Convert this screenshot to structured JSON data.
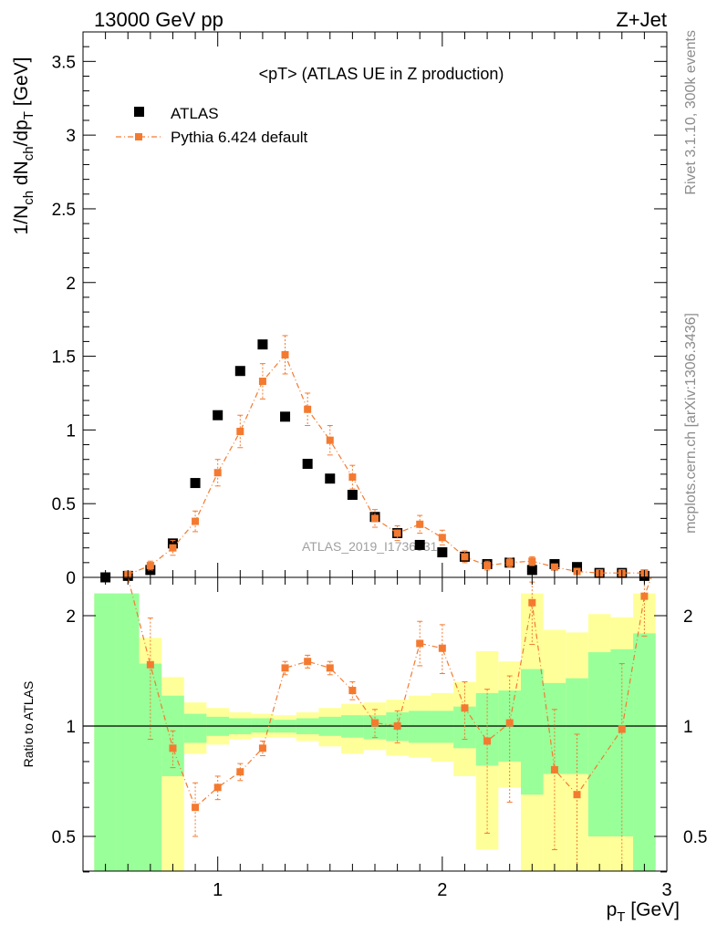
{
  "header": {
    "left": "13000 GeV pp",
    "right": "Z+Jet"
  },
  "side_text": {
    "top": "Rivet 3.1.10,  300k events",
    "bottom": "mcplots.cern.ch [arXiv:1306.3436]"
  },
  "watermark": "ATLAS_2019_I1736531",
  "colors": {
    "data": "#000000",
    "mc": "#f47a30",
    "band_inner": "#99ff99",
    "band_outer": "#ffff99",
    "unity_line": "#000000"
  },
  "chart_data": [
    {
      "type": "scatter",
      "title": "<pT> (ATLAS UE in Z production)",
      "xlabel": "p_T [GeV]",
      "ylabel": "1/N_ch dN_ch/dp_T [GeV]",
      "xlim": [
        0.4,
        3.0
      ],
      "ylim": [
        0,
        3.7
      ],
      "x_ticks": [],
      "y_ticks": [
        "0",
        "0.5",
        "1",
        "1.5",
        "2",
        "2.5",
        "3",
        "3.5"
      ],
      "legend": {
        "position": "top-left",
        "entries": [
          "ATLAS",
          "Pythia 6.424 default"
        ]
      },
      "series": [
        {
          "name": "ATLAS",
          "marker": "square",
          "x": [
            0.5,
            0.6,
            0.7,
            0.8,
            0.9,
            1.0,
            1.1,
            1.2,
            1.3,
            1.4,
            1.5,
            1.6,
            1.7,
            1.8,
            1.9,
            2.0,
            2.1,
            2.2,
            2.3,
            2.4,
            2.5,
            2.6,
            2.7,
            2.8,
            2.9
          ],
          "y": [
            0.0,
            0.01,
            0.05,
            0.23,
            0.64,
            1.1,
            1.4,
            1.58,
            1.09,
            0.77,
            0.67,
            0.56,
            0.41,
            0.3,
            0.22,
            0.17,
            0.14,
            0.09,
            0.1,
            0.05,
            0.09,
            0.07,
            0.03,
            0.03,
            0.01
          ]
        },
        {
          "name": "Pythia 6.424 default",
          "marker": "square-errorbar",
          "x": [
            0.6,
            0.7,
            0.8,
            0.9,
            1.0,
            1.1,
            1.2,
            1.3,
            1.4,
            1.5,
            1.6,
            1.7,
            1.8,
            1.9,
            2.0,
            2.1,
            2.2,
            2.3,
            2.4,
            2.5,
            2.6,
            2.7,
            2.8,
            2.9
          ],
          "y": [
            0.02,
            0.08,
            0.2,
            0.38,
            0.71,
            0.99,
            1.33,
            1.51,
            1.14,
            0.93,
            0.68,
            0.4,
            0.3,
            0.36,
            0.27,
            0.14,
            0.08,
            0.1,
            0.11,
            0.07,
            0.04,
            0.03,
            0.03,
            0.03
          ],
          "err": [
            0.01,
            0.03,
            0.05,
            0.07,
            0.09,
            0.11,
            0.12,
            0.13,
            0.11,
            0.1,
            0.08,
            0.06,
            0.05,
            0.06,
            0.05,
            0.04,
            0.03,
            0.03,
            0.03,
            0.02,
            0.02,
            0.02,
            0.02,
            0.02
          ]
        }
      ]
    },
    {
      "type": "scatter",
      "title": "",
      "xlabel": "p_T [GeV]",
      "ylabel": "Ratio to ATLAS",
      "xlim": [
        0.4,
        3.0
      ],
      "ylim": [
        0.35,
        2.3
      ],
      "x_ticks": [
        "1",
        "2",
        "3"
      ],
      "y_ticks": [
        "0.5",
        "1",
        "2"
      ],
      "bands": {
        "x_edges": [
          0.45,
          0.55,
          0.65,
          0.75,
          0.85,
          0.95,
          1.05,
          1.15,
          1.25,
          1.35,
          1.45,
          1.55,
          1.65,
          1.75,
          1.85,
          1.95,
          2.05,
          2.15,
          2.25,
          2.35,
          2.45,
          2.55,
          2.65,
          2.75,
          2.85,
          2.95
        ],
        "inner_low": [
          0.35,
          0.35,
          0.35,
          0.73,
          0.9,
          0.94,
          0.95,
          0.96,
          0.96,
          0.95,
          0.94,
          0.93,
          0.92,
          0.91,
          0.9,
          0.9,
          0.87,
          0.78,
          0.8,
          0.65,
          0.74,
          0.74,
          0.5,
          0.5,
          0.35
        ],
        "inner_high": [
          2.3,
          2.3,
          1.48,
          1.21,
          1.08,
          1.06,
          1.05,
          1.05,
          1.04,
          1.05,
          1.06,
          1.07,
          1.07,
          1.09,
          1.1,
          1.1,
          1.13,
          1.23,
          1.25,
          1.43,
          1.31,
          1.35,
          1.59,
          1.62,
          1.79
        ],
        "outer_low": [
          0.35,
          0.35,
          0.35,
          0.35,
          0.84,
          0.89,
          0.92,
          0.93,
          0.93,
          0.91,
          0.88,
          0.84,
          0.86,
          0.83,
          0.82,
          0.8,
          0.73,
          0.46,
          0.68,
          0.35,
          0.35,
          0.35,
          0.35,
          0.35,
          0.35
        ],
        "outer_high": [
          2.3,
          2.3,
          1.74,
          1.36,
          1.16,
          1.12,
          1.09,
          1.08,
          1.07,
          1.09,
          1.12,
          1.15,
          1.16,
          1.18,
          1.21,
          1.23,
          1.32,
          1.6,
          1.5,
          2.3,
          1.83,
          1.8,
          2.02,
          1.98,
          2.3
        ]
      },
      "series": [
        {
          "name": "Pythia 6.424 default",
          "x": [
            0.7,
            0.8,
            0.9,
            1.0,
            1.1,
            1.2,
            1.3,
            1.4,
            1.5,
            1.6,
            1.7,
            1.8,
            1.9,
            2.0,
            2.1,
            2.2,
            2.3,
            2.4,
            2.5,
            2.6,
            2.8,
            2.9
          ],
          "y": [
            1.47,
            0.87,
            0.6,
            0.68,
            0.75,
            0.87,
            1.44,
            1.5,
            1.44,
            1.25,
            1.02,
            1.0,
            1.68,
            1.63,
            1.12,
            0.91,
            1.02,
            2.17,
            0.76,
            0.65,
            0.98,
            2.26
          ],
          "err_low": [
            0.55,
            0.1,
            0.1,
            0.05,
            0.04,
            0.04,
            0.06,
            0.06,
            0.06,
            0.07,
            0.09,
            0.1,
            0.22,
            0.24,
            0.2,
            0.4,
            0.4,
            0.5,
            0.3,
            0.3,
            0.6,
            0.5
          ],
          "err_high": [
            0.5,
            0.1,
            0.1,
            0.05,
            0.04,
            0.04,
            0.06,
            0.06,
            0.06,
            0.07,
            0.09,
            0.1,
            0.25,
            0.26,
            0.2,
            0.35,
            0.35,
            0.3,
            0.35,
            0.3,
            0.5,
            0.3
          ]
        }
      ]
    }
  ]
}
